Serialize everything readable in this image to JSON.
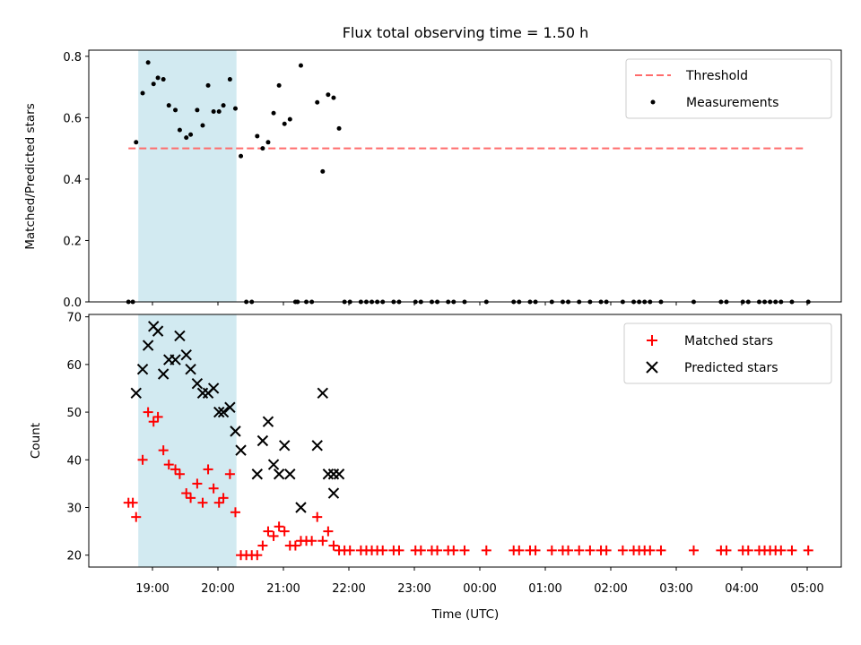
{
  "chart_data": [
    {
      "type": "scatter",
      "title": "Flux total observing time = 1.50 h",
      "ylabel": "Matched/Predicted stars",
      "xlabel": "",
      "ylim": [
        0,
        0.82
      ],
      "yticks": [
        0.0,
        0.2,
        0.4,
        0.6,
        0.8
      ],
      "highlight_span": [
        "18:47",
        "20:17"
      ],
      "highlight_color": "#add8e6",
      "legend_position": "top-right",
      "threshold": {
        "name": "Threshold",
        "value": 0.5,
        "x_range": [
          "18:38",
          "04:58"
        ],
        "color": "#ff6b6b",
        "style": "dashed"
      },
      "series": [
        {
          "name": "Measurements",
          "color": "#000000",
          "points": [
            [
              "18:38",
              0
            ],
            [
              "18:42",
              0
            ],
            [
              "18:45",
              0.52
            ],
            [
              "18:51",
              0.68
            ],
            [
              "18:56",
              0.78
            ],
            [
              "19:01",
              0.71
            ],
            [
              "19:05",
              0.73
            ],
            [
              "19:10",
              0.725
            ],
            [
              "19:15",
              0.64
            ],
            [
              "19:21",
              0.625
            ],
            [
              "19:25",
              0.56
            ],
            [
              "19:31",
              0.535
            ],
            [
              "19:35",
              0.545
            ],
            [
              "19:41",
              0.625
            ],
            [
              "19:46",
              0.575
            ],
            [
              "19:51",
              0.705
            ],
            [
              "19:56",
              0.62
            ],
            [
              "20:01",
              0.62
            ],
            [
              "20:05",
              0.64
            ],
            [
              "20:11",
              0.725
            ],
            [
              "20:16",
              0.63
            ],
            [
              "20:21",
              0.475
            ],
            [
              "20:26",
              0
            ],
            [
              "20:31",
              0
            ],
            [
              "20:36",
              0.54
            ],
            [
              "20:41",
              0.5
            ],
            [
              "20:46",
              0.52
            ],
            [
              "20:51",
              0.615
            ],
            [
              "20:56",
              0.705
            ],
            [
              "21:01",
              0.58
            ],
            [
              "21:06",
              0.595
            ],
            [
              "21:11",
              0
            ],
            [
              "21:13",
              0
            ],
            [
              "21:16",
              0.77
            ],
            [
              "21:21",
              0
            ],
            [
              "21:26",
              0
            ],
            [
              "21:31",
              0.65
            ],
            [
              "21:36",
              0.425
            ],
            [
              "21:41",
              0.675
            ],
            [
              "21:46",
              0.665
            ],
            [
              "21:51",
              0.565
            ],
            [
              "21:56",
              0
            ],
            [
              "22:01",
              0
            ],
            [
              "22:11",
              0
            ],
            [
              "22:16",
              0
            ],
            [
              "22:21",
              0
            ],
            [
              "22:26",
              0
            ],
            [
              "22:31",
              0
            ],
            [
              "22:41",
              0
            ],
            [
              "22:46",
              0
            ],
            [
              "23:01",
              0
            ],
            [
              "23:06",
              0
            ],
            [
              "23:16",
              0
            ],
            [
              "23:21",
              0
            ],
            [
              "23:31",
              0
            ],
            [
              "23:36",
              0
            ],
            [
              "23:46",
              0
            ],
            [
              "00:06",
              0
            ],
            [
              "00:31",
              0
            ],
            [
              "00:36",
              0
            ],
            [
              "00:46",
              0
            ],
            [
              "00:51",
              0
            ],
            [
              "01:06",
              0
            ],
            [
              "01:16",
              0
            ],
            [
              "01:21",
              0
            ],
            [
              "01:31",
              0
            ],
            [
              "01:41",
              0
            ],
            [
              "01:51",
              0
            ],
            [
              "01:56",
              0
            ],
            [
              "02:11",
              0
            ],
            [
              "02:21",
              0
            ],
            [
              "02:26",
              0
            ],
            [
              "02:31",
              0
            ],
            [
              "02:36",
              0
            ],
            [
              "02:46",
              0
            ],
            [
              "03:16",
              0
            ],
            [
              "03:41",
              0
            ],
            [
              "03:46",
              0
            ],
            [
              "04:01",
              0
            ],
            [
              "04:06",
              0
            ],
            [
              "04:16",
              0
            ],
            [
              "04:21",
              0
            ],
            [
              "04:26",
              0
            ],
            [
              "04:31",
              0
            ],
            [
              "04:36",
              0
            ],
            [
              "04:46",
              0
            ],
            [
              "05:01",
              0
            ]
          ]
        }
      ]
    },
    {
      "type": "scatter",
      "title": "",
      "ylabel": "Count",
      "xlabel": "Time (UTC)",
      "ylim": [
        17.5,
        70.5
      ],
      "yticks": [
        20,
        30,
        40,
        50,
        60,
        70
      ],
      "xticks": [
        "19:00",
        "20:00",
        "21:00",
        "22:00",
        "23:00",
        "00:00",
        "01:00",
        "02:00",
        "03:00",
        "04:00",
        "05:00"
      ],
      "highlight_span": [
        "18:47",
        "20:17"
      ],
      "highlight_color": "#add8e6",
      "legend_position": "top-right",
      "series": [
        {
          "name": "Matched stars",
          "color": "#ff0000",
          "marker": "plus",
          "points": [
            [
              "18:38",
              31
            ],
            [
              "18:42",
              31
            ],
            [
              "18:45",
              28
            ],
            [
              "18:51",
              40
            ],
            [
              "18:56",
              50
            ],
            [
              "19:01",
              48
            ],
            [
              "19:05",
              49
            ],
            [
              "19:10",
              42
            ],
            [
              "19:15",
              39
            ],
            [
              "19:21",
              38
            ],
            [
              "19:25",
              37
            ],
            [
              "19:31",
              33
            ],
            [
              "19:35",
              32
            ],
            [
              "19:41",
              35
            ],
            [
              "19:46",
              31
            ],
            [
              "19:51",
              38
            ],
            [
              "19:56",
              34
            ],
            [
              "20:01",
              31
            ],
            [
              "20:05",
              32
            ],
            [
              "20:11",
              37
            ],
            [
              "20:16",
              29
            ],
            [
              "20:21",
              20
            ],
            [
              "20:26",
              20
            ],
            [
              "20:31",
              20
            ],
            [
              "20:36",
              20
            ],
            [
              "20:41",
              22
            ],
            [
              "20:46",
              25
            ],
            [
              "20:51",
              24
            ],
            [
              "20:56",
              26
            ],
            [
              "21:01",
              25
            ],
            [
              "21:06",
              22
            ],
            [
              "21:11",
              22
            ],
            [
              "21:16",
              23
            ],
            [
              "21:21",
              23
            ],
            [
              "21:26",
              23
            ],
            [
              "21:31",
              28
            ],
            [
              "21:36",
              23
            ],
            [
              "21:41",
              25
            ],
            [
              "21:46",
              22
            ],
            [
              "21:51",
              21
            ],
            [
              "21:56",
              21
            ],
            [
              "22:01",
              21
            ],
            [
              "22:11",
              21
            ],
            [
              "22:16",
              21
            ],
            [
              "22:21",
              21
            ],
            [
              "22:26",
              21
            ],
            [
              "22:31",
              21
            ],
            [
              "22:41",
              21
            ],
            [
              "22:46",
              21
            ],
            [
              "23:01",
              21
            ],
            [
              "23:06",
              21
            ],
            [
              "23:16",
              21
            ],
            [
              "23:21",
              21
            ],
            [
              "23:31",
              21
            ],
            [
              "23:36",
              21
            ],
            [
              "23:46",
              21
            ],
            [
              "00:06",
              21
            ],
            [
              "00:31",
              21
            ],
            [
              "00:36",
              21
            ],
            [
              "00:46",
              21
            ],
            [
              "00:51",
              21
            ],
            [
              "01:06",
              21
            ],
            [
              "01:16",
              21
            ],
            [
              "01:21",
              21
            ],
            [
              "01:31",
              21
            ],
            [
              "01:41",
              21
            ],
            [
              "01:51",
              21
            ],
            [
              "01:56",
              21
            ],
            [
              "02:11",
              21
            ],
            [
              "02:21",
              21
            ],
            [
              "02:26",
              21
            ],
            [
              "02:31",
              21
            ],
            [
              "02:36",
              21
            ],
            [
              "02:46",
              21
            ],
            [
              "03:16",
              21
            ],
            [
              "03:41",
              21
            ],
            [
              "03:46",
              21
            ],
            [
              "04:01",
              21
            ],
            [
              "04:06",
              21
            ],
            [
              "04:16",
              21
            ],
            [
              "04:21",
              21
            ],
            [
              "04:26",
              21
            ],
            [
              "04:31",
              21
            ],
            [
              "04:36",
              21
            ],
            [
              "04:46",
              21
            ],
            [
              "05:01",
              21
            ]
          ]
        },
        {
          "name": "Predicted stars",
          "color": "#000000",
          "marker": "x",
          "points": [
            [
              "18:45",
              54
            ],
            [
              "18:51",
              59
            ],
            [
              "18:56",
              64
            ],
            [
              "19:01",
              68
            ],
            [
              "19:05",
              67
            ],
            [
              "19:10",
              58
            ],
            [
              "19:15",
              61
            ],
            [
              "19:21",
              61
            ],
            [
              "19:25",
              66
            ],
            [
              "19:31",
              62
            ],
            [
              "19:35",
              59
            ],
            [
              "19:41",
              56
            ],
            [
              "19:46",
              54
            ],
            [
              "19:51",
              54
            ],
            [
              "19:56",
              55
            ],
            [
              "20:01",
              50
            ],
            [
              "20:05",
              50
            ],
            [
              "20:11",
              51
            ],
            [
              "20:16",
              46
            ],
            [
              "20:21",
              42
            ],
            [
              "20:36",
              37
            ],
            [
              "20:41",
              44
            ],
            [
              "20:46",
              48
            ],
            [
              "20:51",
              39
            ],
            [
              "20:56",
              37
            ],
            [
              "21:01",
              43
            ],
            [
              "21:06",
              37
            ],
            [
              "21:16",
              30
            ],
            [
              "21:31",
              43
            ],
            [
              "21:36",
              54
            ],
            [
              "21:41",
              37
            ],
            [
              "21:46",
              33
            ],
            [
              "21:46",
              37
            ],
            [
              "21:51",
              37
            ]
          ]
        }
      ]
    }
  ]
}
